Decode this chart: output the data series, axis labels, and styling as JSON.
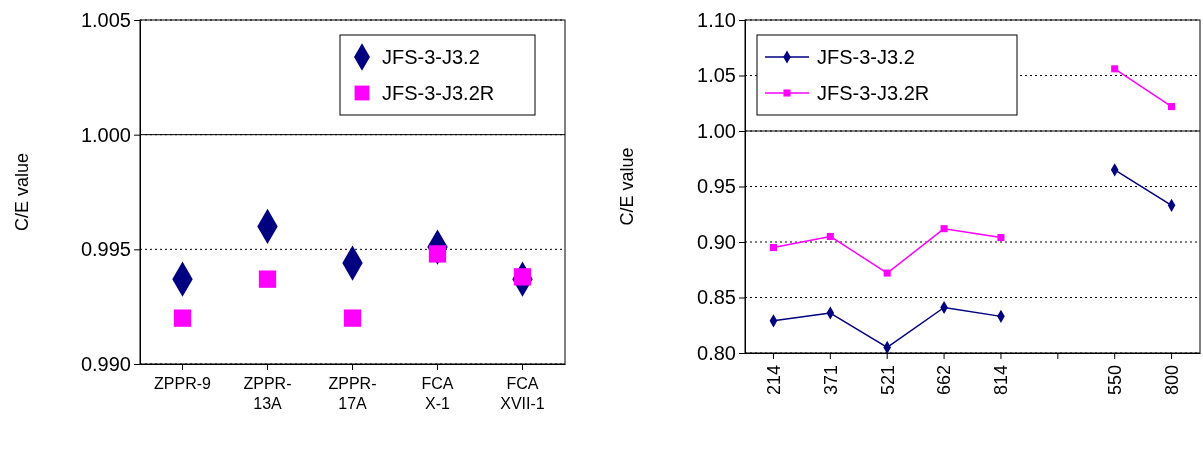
{
  "chart_data": [
    {
      "type": "scatter",
      "ylabel": "C/E value",
      "categories": [
        "ZPPR-9",
        "ZPPR-13A",
        "ZPPR-17A",
        "FCA X-1",
        "FCA XVII-1"
      ],
      "series": [
        {
          "name": "JFS-3-J3.2",
          "color": "#000080",
          "marker": "diamond",
          "values": [
            0.9937,
            0.996,
            0.9944,
            0.9951,
            0.9937
          ]
        },
        {
          "name": "JFS-3-J3.2R",
          "color": "#ff00ff",
          "marker": "square",
          "values": [
            0.992,
            0.9937,
            0.992,
            0.9948,
            0.9938
          ]
        }
      ],
      "ylim": [
        0.99,
        1.005
      ],
      "yticks": [
        {
          "value": 0.99,
          "label": "0.990"
        },
        {
          "value": 0.995,
          "label": "0.995"
        },
        {
          "value": 1.0,
          "label": "1.000"
        },
        {
          "value": 1.005,
          "label": "1.005"
        }
      ],
      "grid": "y",
      "ref_lines": [
        {
          "axis": "y",
          "value": 1.0,
          "line_style": "solid"
        }
      ],
      "legend": "top right"
    },
    {
      "type": "line",
      "ylabel": "C/E value",
      "categories": [
        "214",
        "371",
        "521",
        "662",
        "814",
        null,
        "550",
        "800"
      ],
      "series": [
        {
          "name": "JFS-3-J3.2",
          "color": "#000080",
          "marker": "diamond",
          "values": [
            0.829,
            0.836,
            0.805,
            0.841,
            0.833,
            null,
            0.965,
            0.933
          ]
        },
        {
          "name": "JFS-3-J3.2R",
          "color": "#ff00ff",
          "marker": "square",
          "values": [
            0.895,
            0.905,
            0.872,
            0.912,
            0.904,
            null,
            1.056,
            1.022
          ]
        }
      ],
      "ylim": [
        0.8,
        1.1
      ],
      "yticks": [
        {
          "value": 0.8,
          "label": "0.80"
        },
        {
          "value": 0.85,
          "label": "0.85"
        },
        {
          "value": 0.9,
          "label": "0.90"
        },
        {
          "value": 0.95,
          "label": "0.95"
        },
        {
          "value": 1.0,
          "label": "1.00"
        },
        {
          "value": 1.05,
          "label": "1.05"
        },
        {
          "value": 1.1,
          "label": "1.10"
        }
      ],
      "grid": "y",
      "ref_lines": [
        {
          "axis": "y",
          "value": 1.0,
          "line_style": "solid"
        }
      ],
      "legend": "top left"
    }
  ]
}
